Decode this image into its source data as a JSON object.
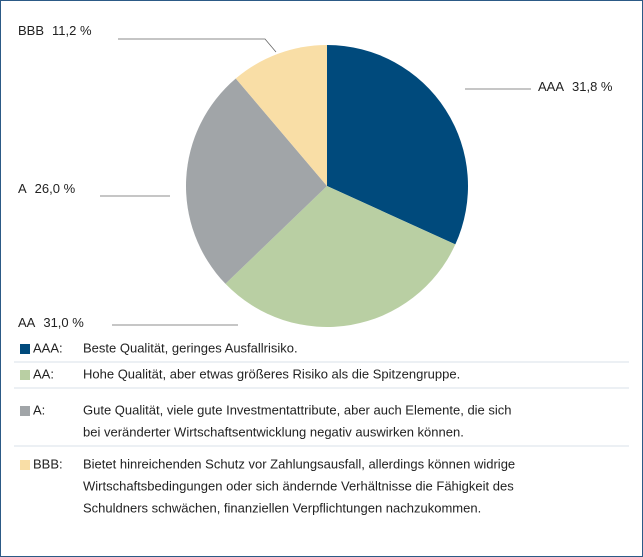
{
  "chart_data": {
    "type": "pie",
    "categories": [
      "AAA",
      "AA",
      "A",
      "BBB"
    ],
    "values": [
      31.8,
      31.0,
      26.0,
      11.2
    ],
    "value_labels": [
      "31,8 %",
      "31,0 %",
      "26,0 %",
      "11,2 %"
    ],
    "colors": [
      "#004a7c",
      "#b9cfa3",
      "#a1a5a8",
      "#f9dea6"
    ]
  },
  "legend": [
    {
      "key": "AAA:",
      "lines": [
        "Beste Qualität, geringes Ausfallrisiko."
      ]
    },
    {
      "key": "AA:",
      "lines": [
        "Hohe Qualität, aber etwas größeres Risiko als die Spitzengruppe."
      ]
    },
    {
      "key": "A:",
      "lines": [
        "Gute Qualität, viele gute Investmentattribute, aber auch Elemente, die sich",
        "bei veränderter Wirtschaftsentwicklung negativ auswirken können."
      ]
    },
    {
      "key": "BBB:",
      "lines": [
        "Bietet hinreichenden Schutz vor Zahlungsausfall, allerdings können widrige",
        "Wirtschaftsbedingungen oder sich ändernde Verhältnisse die Fähigkeit des",
        "Schuldners schwächen, finanziellen Verpflichtungen nachzukommen."
      ]
    }
  ]
}
